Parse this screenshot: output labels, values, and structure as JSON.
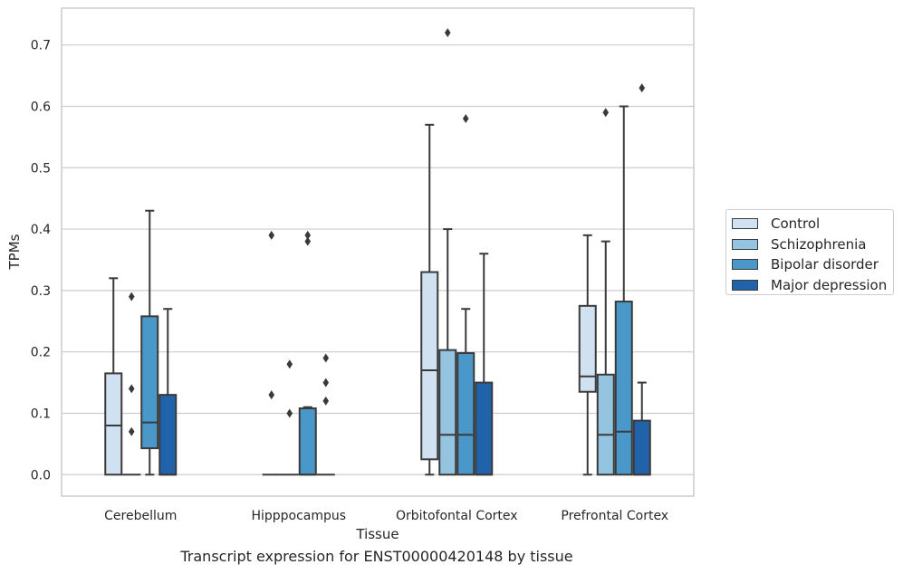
{
  "chart_data": {
    "type": "box",
    "title": "",
    "caption": "Transcript expression for ENST00000420148 by tissue",
    "xlabel": "Tissue",
    "ylabel": "TPMs",
    "ylim": [
      -0.035,
      0.76
    ],
    "yticks": [
      "0.0",
      "0.1",
      "0.2",
      "0.3",
      "0.4",
      "0.5",
      "0.6",
      "0.7"
    ],
    "categories": [
      "Cerebellum",
      "Hipppocampus",
      "Orbitofontal Cortex",
      "Prefrontal Cortex"
    ],
    "grid": true,
    "legend_position": "right",
    "series": [
      {
        "name": "Control",
        "color": "#d0e1f2",
        "boxes": [
          {
            "q1": 0.0,
            "median": 0.08,
            "q3": 0.165,
            "whisker_low": 0.0,
            "whisker_high": 0.32,
            "outliers": []
          },
          {
            "q1": 0.0,
            "median": 0.0,
            "q3": 0.0,
            "whisker_low": 0.0,
            "whisker_high": 0.0,
            "outliers": [
              0.13,
              0.39
            ]
          },
          {
            "q1": 0.025,
            "median": 0.17,
            "q3": 0.33,
            "whisker_low": 0.0,
            "whisker_high": 0.57,
            "outliers": []
          },
          {
            "q1": 0.135,
            "median": 0.16,
            "q3": 0.275,
            "whisker_low": 0.0,
            "whisker_high": 0.39,
            "outliers": []
          }
        ]
      },
      {
        "name": "Schizophrenia",
        "color": "#94c4df",
        "boxes": [
          {
            "q1": 0.0,
            "median": 0.0,
            "q3": 0.0,
            "whisker_low": 0.0,
            "whisker_high": 0.0,
            "outliers": [
              0.07,
              0.14,
              0.29
            ]
          },
          {
            "q1": 0.0,
            "median": 0.0,
            "q3": 0.0,
            "whisker_low": 0.0,
            "whisker_high": 0.0,
            "outliers": [
              0.1,
              0.18
            ]
          },
          {
            "q1": 0.0,
            "median": 0.065,
            "q3": 0.203,
            "whisker_low": 0.0,
            "whisker_high": 0.4,
            "outliers": [
              0.72
            ]
          },
          {
            "q1": 0.0,
            "median": 0.065,
            "q3": 0.163,
            "whisker_low": 0.0,
            "whisker_high": 0.38,
            "outliers": [
              0.59
            ]
          }
        ]
      },
      {
        "name": "Bipolar disorder",
        "color": "#4a98c9",
        "boxes": [
          {
            "q1": 0.043,
            "median": 0.085,
            "q3": 0.258,
            "whisker_low": 0.0,
            "whisker_high": 0.43,
            "outliers": []
          },
          {
            "q1": 0.0,
            "median": 0.0,
            "q3": 0.108,
            "whisker_low": 0.0,
            "whisker_high": 0.11,
            "outliers": [
              0.38,
              0.39
            ]
          },
          {
            "q1": 0.0,
            "median": 0.065,
            "q3": 0.198,
            "whisker_low": 0.0,
            "whisker_high": 0.27,
            "outliers": [
              0.58
            ]
          },
          {
            "q1": 0.0,
            "median": 0.07,
            "q3": 0.282,
            "whisker_low": 0.0,
            "whisker_high": 0.6,
            "outliers": []
          }
        ]
      },
      {
        "name": "Major depression",
        "color": "#2163aa",
        "boxes": [
          {
            "q1": 0.0,
            "median": 0.0,
            "q3": 0.13,
            "whisker_low": 0.0,
            "whisker_high": 0.27,
            "outliers": []
          },
          {
            "q1": 0.0,
            "median": 0.0,
            "q3": 0.0,
            "whisker_low": 0.0,
            "whisker_high": 0.0,
            "outliers": [
              0.12,
              0.15,
              0.19
            ]
          },
          {
            "q1": 0.0,
            "median": 0.0,
            "q3": 0.15,
            "whisker_low": 0.0,
            "whisker_high": 0.36,
            "outliers": []
          },
          {
            "q1": 0.0,
            "median": 0.0,
            "q3": 0.088,
            "whisker_low": 0.0,
            "whisker_high": 0.15,
            "outliers": [
              0.63
            ]
          }
        ]
      }
    ]
  }
}
